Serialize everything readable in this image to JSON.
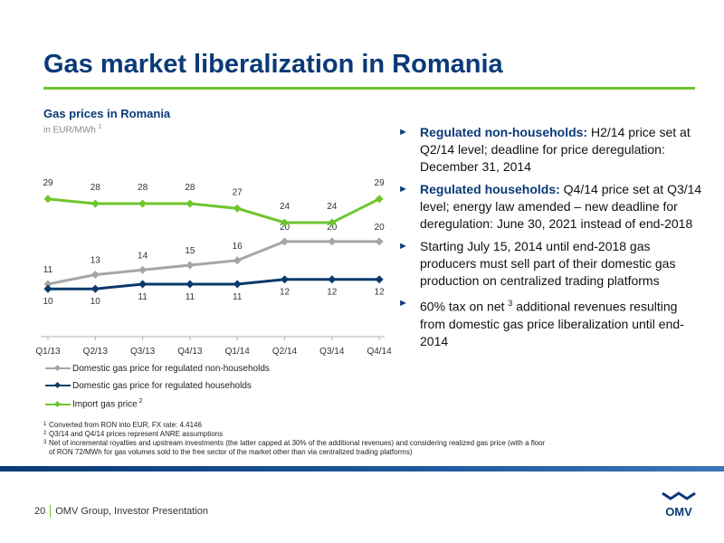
{
  "header": {
    "title": "Gas market liberalization in Romania"
  },
  "chart_header": {
    "title": "Gas prices in Romania",
    "subtitle": "in EUR/MWh",
    "subtitle_note": "1"
  },
  "chart_data": {
    "type": "line",
    "categories": [
      "Q1/13",
      "Q2/13",
      "Q3/13",
      "Q4/13",
      "Q1/14",
      "Q2/14",
      "Q3/14",
      "Q4/14"
    ],
    "series": [
      {
        "name": "Domestic gas price for regulated non-households",
        "color": "#a6a6a6",
        "values": [
          11,
          13,
          14,
          15,
          16,
          20,
          20,
          20
        ],
        "labels": [
          "11",
          "13",
          "14",
          "15",
          "16",
          "20",
          "20",
          "20"
        ]
      },
      {
        "name": "Domestic gas price for regulated households",
        "color": "#0a3a6b",
        "values": [
          10,
          10,
          11,
          11,
          11,
          12,
          12,
          12
        ],
        "labels": [
          "10",
          "10",
          "11",
          "11",
          "11",
          "12",
          "12",
          "12"
        ]
      },
      {
        "name": "Import gas price",
        "name_note": "2",
        "color": "#6ec62e",
        "values": [
          29,
          28,
          28,
          28,
          27,
          24,
          24,
          29
        ],
        "labels": [
          "29",
          "28",
          "28",
          "28",
          "27",
          "24",
          "24",
          "29"
        ]
      }
    ],
    "grid": false,
    "legend_position": "bottom"
  },
  "bullets": [
    {
      "bold": "Regulated non-households:",
      "text": " H2/14 price set at Q2/14 level; deadline for price deregulation: December 31, 2014"
    },
    {
      "bold": "Regulated households:",
      "text": " Q4/14 price set at Q3/14 level; energy law amended – new deadline for deregulation: June 30, 2021 instead of end-2018"
    },
    {
      "bold": "",
      "text": "Starting July 15, 2014 until end-2018 gas producers must sell part of their domestic gas production on centralized trading platforms"
    },
    {
      "bold": "",
      "text": "60% tax on net ",
      "sup": "3",
      "text2": " additional revenues resulting from domestic gas price liberalization until end-2014"
    }
  ],
  "footnotes": [
    {
      "mark": "1",
      "text": "Converted from RON into EUR, FX rate: 4.4146"
    },
    {
      "mark": "2",
      "text": "Q3/14 and Q4/14 prices represent ANRE assumptions"
    },
    {
      "mark": "3",
      "text": "Net of incremental royalties and upstream investments (the latter capped at 30% of the additional revenues) and considering realized gas price (with a floor of RON 72/MWh for gas volumes sold to the free sector of the market other than via centralized trading platforms)"
    }
  ],
  "footer": {
    "page_number": "20",
    "text": "OMV Group, Investor Presentation",
    "logo_text": "OMV"
  },
  "colors": {
    "primary": "#0a3a78",
    "accent": "#6ec62e"
  }
}
